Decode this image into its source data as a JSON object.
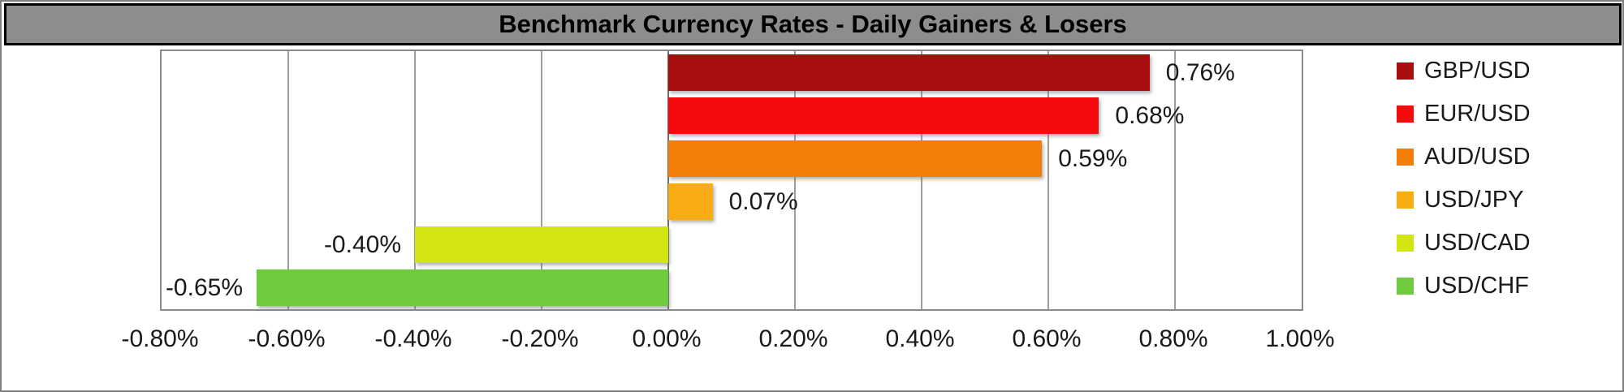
{
  "chart_data": {
    "type": "bar",
    "orientation": "horizontal",
    "title": "Benchmark Currency Rates - Daily Gainers & Losers",
    "categories": [
      "GBP/USD",
      "EUR/USD",
      "AUD/USD",
      "USD/JPY",
      "USD/CAD",
      "USD/CHF"
    ],
    "values": [
      0.76,
      0.68,
      0.59,
      0.07,
      -0.4,
      -0.65
    ],
    "data_labels": [
      "0.76%",
      "0.68%",
      "0.59%",
      "0.07%",
      "-0.40%",
      "-0.65%"
    ],
    "bar_colors": [
      "#a90e0f",
      "#f50b0d",
      "#f57d09",
      "#f9ac14",
      "#d2e513",
      "#6fcb3e"
    ],
    "x_ticks": {
      "values": [
        -0.8,
        -0.6,
        -0.4,
        -0.2,
        0.0,
        0.2,
        0.4,
        0.6,
        0.8,
        1.0
      ],
      "labels": [
        "-0.80%",
        "-0.60%",
        "-0.40%",
        "-0.20%",
        "0.00%",
        "0.20%",
        "0.40%",
        "0.60%",
        "0.80%",
        "1.00%"
      ]
    },
    "xlim": [
      -0.8,
      1.0
    ],
    "grid": "vertical",
    "legend_position": "right",
    "unit": "percent"
  },
  "colors": {
    "title_bg": "#8d8d8d",
    "title_text": "#000000",
    "title_border": "#000000",
    "plot_border": "#8a8a8a",
    "gridline": "#9c9c9c",
    "zero_line": "#6e6e6e",
    "label_text": "#1a1a1a",
    "chart_bg": "#ffffff"
  }
}
